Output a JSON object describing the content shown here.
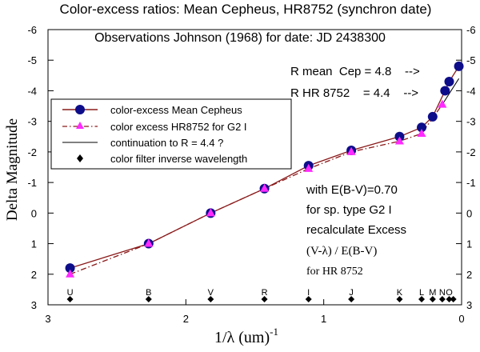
{
  "chart_data": {
    "type": "line",
    "title": "Color-excess ratios: Mean  Cepheus, HR8752 (synchron date)",
    "subtitle": "Observations  Johnson (1968) for date: JD 2438300",
    "xlabel": "1/λ  (um)",
    "xlabel_exponent": "-1",
    "ylabel": "Delta Magnitude",
    "xlim": [
      3.0,
      0.0
    ],
    "ylim": [
      3,
      -6
    ],
    "x_ticks": [
      {
        "value": 3,
        "label": "3"
      },
      {
        "value": 2,
        "label": "2"
      },
      {
        "value": 1,
        "label": "1"
      },
      {
        "value": 0,
        "label": "0"
      }
    ],
    "y_ticks": [
      {
        "value": 3,
        "label": "3"
      },
      {
        "value": 2,
        "label": "2"
      },
      {
        "value": 1,
        "label": "1"
      },
      {
        "value": 0,
        "label": "0"
      },
      {
        "value": -1,
        "label": "-1"
      },
      {
        "value": -2,
        "label": "-2"
      },
      {
        "value": -3,
        "label": "-3"
      },
      {
        "value": -4,
        "label": "-4"
      },
      {
        "value": -5,
        "label": "-5"
      },
      {
        "value": -6,
        "label": "-6"
      }
    ],
    "grid": false,
    "series": [
      {
        "name": "color-excess Mean Cepheus",
        "marker": "circle",
        "color": "#0d0d8a",
        "line_color": "#8b1a1a",
        "line_style": "solid",
        "x": [
          2.84,
          2.27,
          1.82,
          1.43,
          1.11,
          0.8,
          0.45,
          0.29,
          0.21,
          0.12,
          0.09,
          0.02
        ],
        "values": [
          1.8,
          1.0,
          0.0,
          -0.8,
          -1.55,
          -2.05,
          -2.5,
          -2.8,
          -3.15,
          -4.0,
          -4.3,
          -4.8
        ]
      },
      {
        "name": "color excess HR8752 for G2 I",
        "marker": "triangle",
        "color": "#ff2aff",
        "line_color": "#8b1a1a",
        "line_style": "dashdot",
        "x": [
          2.84,
          2.27,
          1.82,
          1.43,
          1.11,
          0.8,
          0.45,
          0.29,
          0.14
        ],
        "values": [
          2.0,
          1.0,
          0.0,
          -0.8,
          -1.45,
          -2.0,
          -2.35,
          -2.6,
          -3.55
        ]
      },
      {
        "name": "continuation to R = 4.4 ?",
        "marker": "none",
        "color": "#000000",
        "line_style": "solid",
        "x": [
          0.14,
          0.02
        ],
        "values": [
          -3.55,
          -4.4
        ]
      },
      {
        "name": "color filter inverse wavelength",
        "marker": "diamond",
        "color": "#000000",
        "line_style": "none",
        "x": [
          2.84,
          2.27,
          1.82,
          1.43,
          1.11,
          0.8,
          0.45,
          0.29,
          0.21,
          0.14,
          0.09,
          0.06
        ],
        "values": [
          3,
          3,
          3,
          3,
          3,
          3,
          3,
          3,
          3,
          3,
          3,
          3
        ],
        "point_labels": [
          "U",
          "B",
          "V",
          "R",
          "I",
          "J",
          "K",
          "L",
          "M",
          "N",
          "O",
          ""
        ]
      }
    ],
    "annotations": {
      "r_lines": [
        "R mean  Cep = 4.8    -->",
        "R HR 8752    = 4.4    -->"
      ],
      "note_lines": [
        "with E(B-V)=0.70",
        "for sp. type G2 I",
        "recalculate Excess",
        "(V-λ) / E(B-V)",
        "for HR 8752"
      ]
    }
  }
}
